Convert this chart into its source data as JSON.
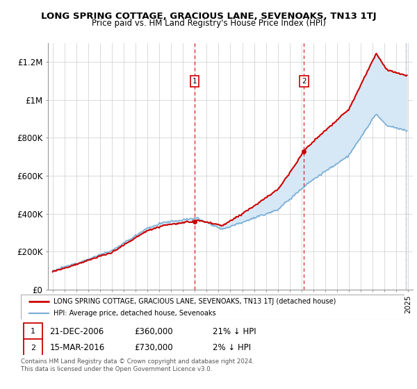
{
  "title": "LONG SPRING COTTAGE, GRACIOUS LANE, SEVENOAKS, TN13 1TJ",
  "subtitle": "Price paid vs. HM Land Registry's House Price Index (HPI)",
  "legend_label_red": "LONG SPRING COTTAGE, GRACIOUS LANE, SEVENOAKS, TN13 1TJ (detached house)",
  "legend_label_blue": "HPI: Average price, detached house, Sevenoaks",
  "annotation1_date": "21-DEC-2006",
  "annotation1_price": "£360,000",
  "annotation1_hpi": "21% ↓ HPI",
  "annotation2_date": "15-MAR-2016",
  "annotation2_price": "£730,000",
  "annotation2_hpi": "2% ↓ HPI",
  "footer": "Contains HM Land Registry data © Crown copyright and database right 2024.\nThis data is licensed under the Open Government Licence v3.0.",
  "red_color": "#cc0000",
  "blue_color": "#7aadd4",
  "shading_color": "#d6e8f5",
  "vline_color": "#cc0000",
  "annotation_box_color": "#cc0000",
  "ylim": [
    0,
    1300000
  ],
  "yticks": [
    0,
    200000,
    400000,
    600000,
    800000,
    1000000,
    1200000
  ],
  "ytick_labels": [
    "£0",
    "£200K",
    "£400K",
    "£600K",
    "£800K",
    "£1M",
    "£1.2M"
  ],
  "purchase1_year": 2006.97,
  "purchase1_price": 360000,
  "purchase2_year": 2016.21,
  "purchase2_price": 730000
}
